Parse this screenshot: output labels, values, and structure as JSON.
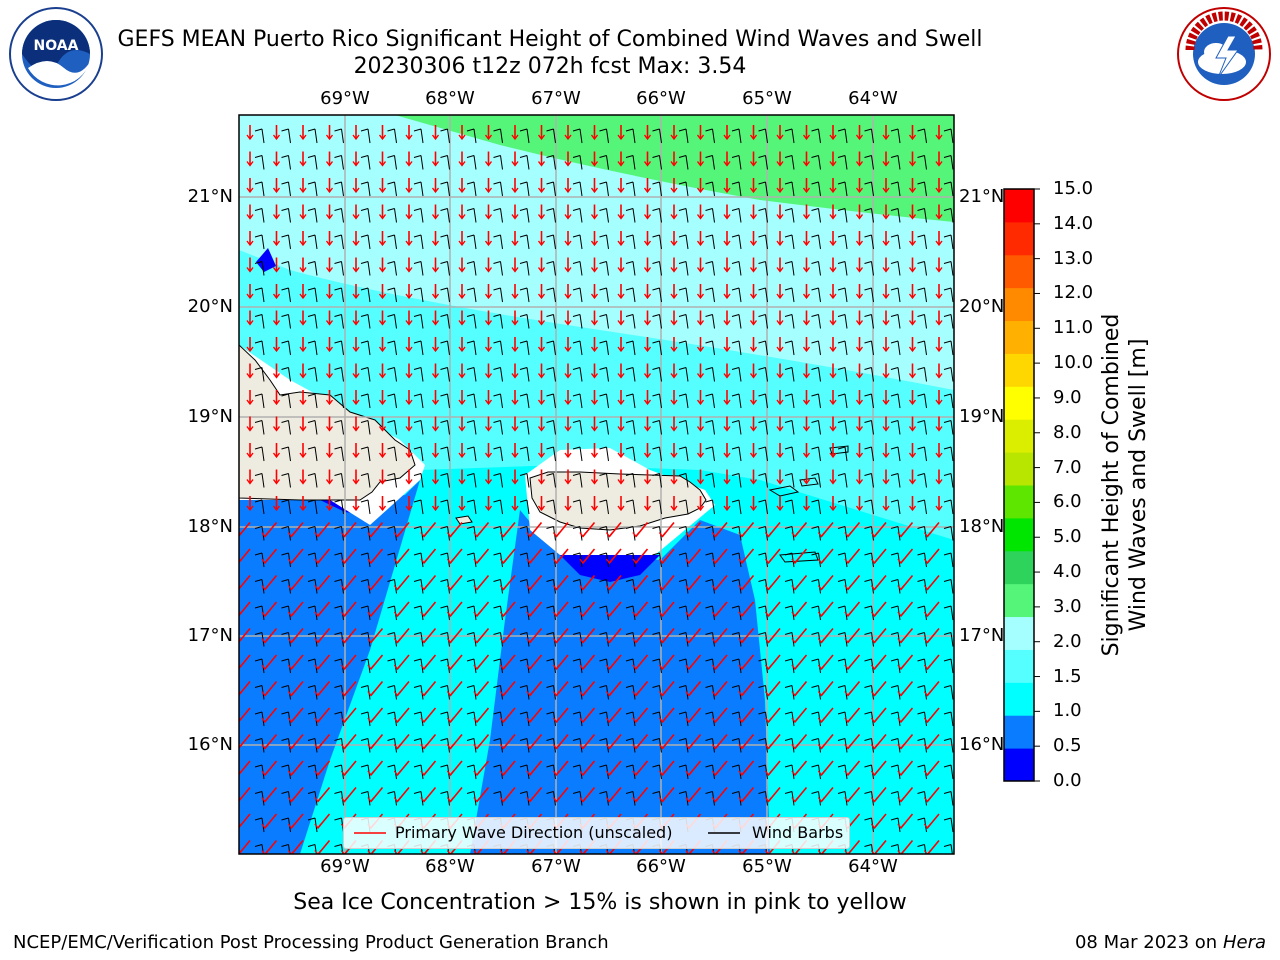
{
  "header": {
    "title_line1": "GEFS MEAN Puerto Rico Significant Height of Combined Wind Waves and Swell",
    "title_line2": "20230306 t12z 072h fcst   Max: 3.54"
  },
  "logos": {
    "left_text": "NOAA",
    "left_ring_text": "NATIONAL OCEANIC AND ATMOSPHERIC ADMINISTRATION · U.S. DEPARTMENT OF COMMERCE",
    "right_ring_text": "NATIONAL WEATHER SERVICE"
  },
  "map": {
    "lon_labels": [
      "69°W",
      "68°W",
      "67°W",
      "66°W",
      "65°W",
      "64°W"
    ],
    "lat_labels": [
      "21°N",
      "20°N",
      "19°N",
      "18°N",
      "17°N",
      "16°N"
    ],
    "legend": {
      "wave_label": "Primary Wave Direction (unscaled)",
      "wind_label": "Wind Barbs",
      "wave_color": "#ff0000",
      "wind_color": "#000000"
    },
    "land_color": "#eeece0",
    "grid_color": "#b0b0b0"
  },
  "colorbar": {
    "title_line1": "Significant Height of Combined",
    "title_line2": "Wind Waves and Swell [m]",
    "tick_labels": [
      "0.0",
      "0.5",
      "1.0",
      "1.5",
      "2.0",
      "3.0",
      "4.0",
      "5.0",
      "6.0",
      "7.0",
      "8.0",
      "9.0",
      "10.0",
      "11.0",
      "12.0",
      "13.0",
      "14.0",
      "15.0"
    ],
    "colors": [
      "#0000ff",
      "#0a7cff",
      "#00ffff",
      "#55ffff",
      "#a6ffff",
      "#55f57a",
      "#2dd35a",
      "#00e600",
      "#5ee600",
      "#b8e600",
      "#dcee00",
      "#ffff00",
      "#ffd700",
      "#ffb000",
      "#ff8a00",
      "#ff5a00",
      "#ff2a00",
      "#ff0000"
    ]
  },
  "caption": "Sea Ice Concentration > 15% is shown in pink to yellow",
  "footer": {
    "left": "NCEP/EMC/Verification Post Processing Product Generation Branch",
    "right_date": "08 Mar 2023 on",
    "right_host": "Hera"
  }
}
